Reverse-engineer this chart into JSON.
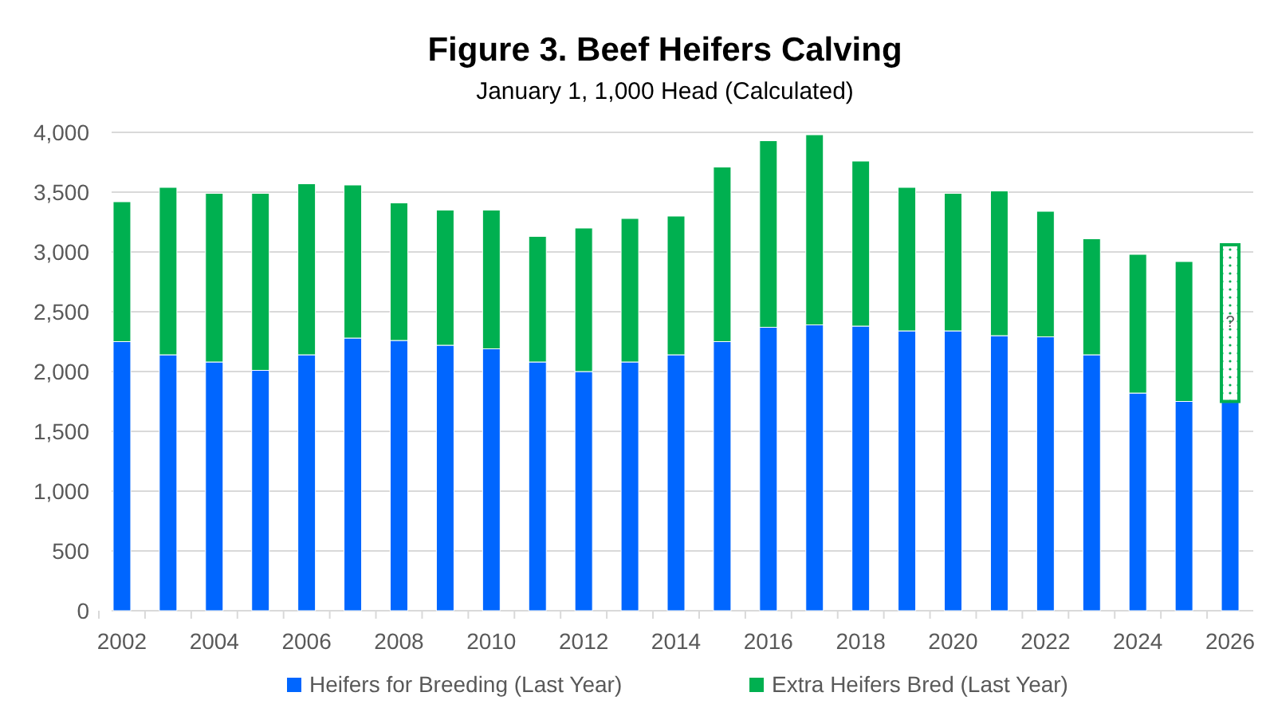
{
  "chart_data": {
    "type": "bar",
    "title": "Figure 3. Beef Heifers Calving",
    "subtitle": "January 1, 1,000 Head (Calculated)",
    "categories": [
      "2002",
      null,
      "2004",
      null,
      "2006",
      null,
      "2008",
      null,
      "2010",
      null,
      "2012",
      null,
      "2014",
      null,
      "2016",
      null,
      "2018",
      null,
      "2020",
      null,
      "2022",
      null,
      "2024",
      null,
      "2026"
    ],
    "series": [
      {
        "name": "Heifers for Breeding (Last Year)",
        "color": "#0066ff",
        "values": [
          2250,
          2140,
          2080,
          2010,
          2140,
          2280,
          2260,
          2220,
          2190,
          2080,
          2000,
          2080,
          2140,
          2250,
          2370,
          2390,
          2380,
          2340,
          2340,
          2300,
          2290,
          2140,
          1820,
          1750,
          1750
        ]
      },
      {
        "name": "Extra Heifers Bred (Last Year)",
        "color": "#00b050",
        "values": [
          1170,
          1400,
          1410,
          1480,
          1430,
          1280,
          1150,
          1130,
          1160,
          1050,
          1200,
          1200,
          1160,
          1460,
          1560,
          1590,
          1380,
          1200,
          1150,
          1210,
          1050,
          970,
          1160,
          1170,
          null
        ]
      },
      {
        "color": "#00b050",
        "values": [
          null,
          null,
          null,
          null,
          null,
          null,
          null,
          null,
          null,
          null,
          null,
          null,
          null,
          null,
          null,
          null,
          null,
          null,
          null,
          null,
          null,
          null,
          null,
          null,
          1310
        ]
      }
    ],
    "annotations": [
      {
        "text": "?",
        "x": "2026",
        "y": 2420
      }
    ],
    "stacked": true,
    "ylim": [
      0,
      4000
    ],
    "yticks": [
      {
        "value": 0,
        "label": "0"
      },
      {
        "value": 500,
        "label": "500"
      },
      {
        "value": 1000,
        "label": "1,000"
      },
      {
        "value": 1500,
        "label": "1,500"
      },
      {
        "value": 2000,
        "label": "2,000"
      },
      {
        "value": 2500,
        "label": "2,500"
      },
      {
        "value": 3000,
        "label": "3,000"
      },
      {
        "value": 3500,
        "label": "3,500"
      },
      {
        "value": 4000,
        "label": "4,000"
      }
    ],
    "grid": "y",
    "legend": "bottom"
  }
}
